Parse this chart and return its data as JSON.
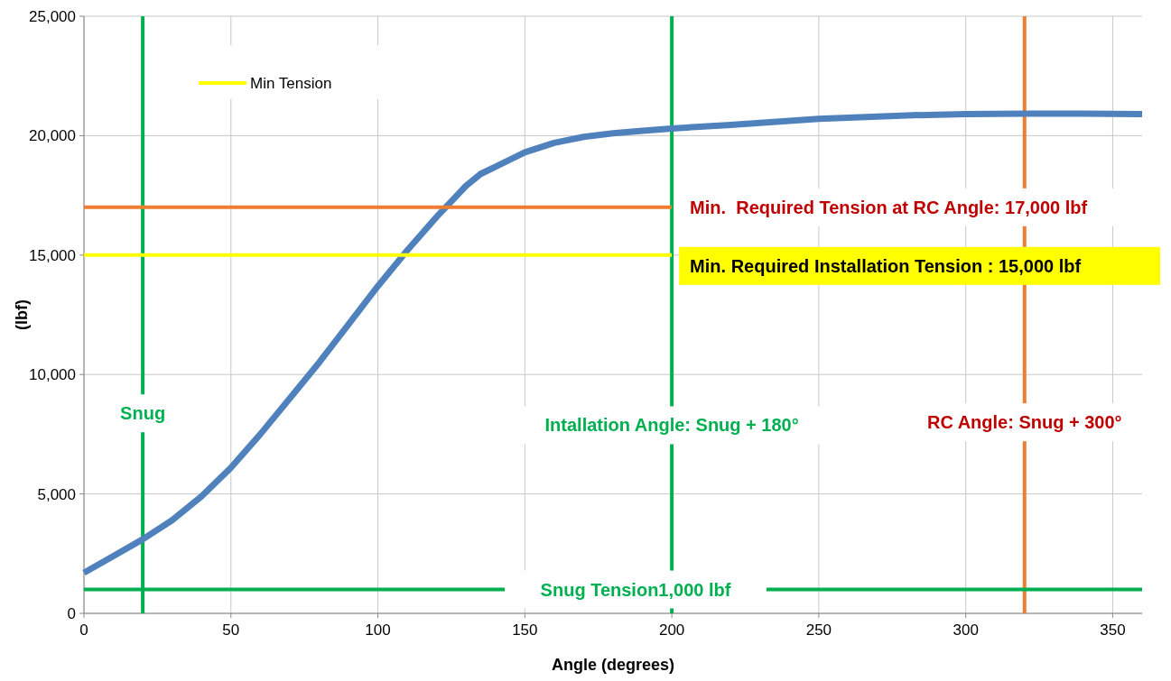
{
  "chart_data": {
    "type": "line",
    "xlabel": "Angle (degrees)",
    "ylabel": "(lbf)",
    "xlim": [
      0,
      360
    ],
    "xticks": [
      0,
      50,
      100,
      150,
      200,
      250,
      300,
      350
    ],
    "ylim": [
      0,
      25000
    ],
    "yticks": [
      {
        "value": 0,
        "label": "0"
      },
      {
        "value": 5000,
        "label": "5,000"
      },
      {
        "value": 10000,
        "label": "10,000"
      },
      {
        "value": 15000,
        "label": "15,000"
      },
      {
        "value": 20000,
        "label": "20,000"
      },
      {
        "value": 25000,
        "label": "25,000"
      }
    ],
    "grid": true,
    "legend": "top left",
    "series": [
      {
        "color": "#4f81bd",
        "x": [
          0,
          10,
          20,
          30,
          40,
          50,
          60,
          70,
          80,
          90,
          100,
          110,
          120,
          130,
          135,
          140,
          150,
          160,
          170,
          180,
          190,
          200,
          220,
          250,
          280,
          300,
          320,
          340,
          360
        ],
        "values": [
          1700,
          2400,
          3100,
          3900,
          4900,
          6100,
          7500,
          9000,
          10500,
          12100,
          13700,
          15200,
          16600,
          17900,
          18400,
          18700,
          19300,
          19700,
          19950,
          20100,
          20200,
          20300,
          20450,
          20700,
          20850,
          20900,
          20920,
          20920,
          20900
        ]
      },
      {
        "name": "Min Tension",
        "color": "#ffff00",
        "x": [
          0,
          200
        ],
        "values": [
          15000,
          15000
        ]
      },
      {
        "color": "#ed7d31",
        "x": [
          0,
          200
        ],
        "values": [
          17000,
          17000
        ]
      }
    ],
    "ref_lines": [
      {
        "axis": "x",
        "value": 20,
        "label": "Snug",
        "color": "#00b050"
      },
      {
        "axis": "x",
        "value": 200,
        "label": "Intallation Angle: Snug + 180°",
        "color": "#00b050"
      },
      {
        "axis": "x",
        "value": 320,
        "label": "RC Angle: Snug + 300°",
        "color": "#ed7d31"
      },
      {
        "axis": "y",
        "value": 1000,
        "label": "Snug Tension1,000 lbf",
        "color": "#00b050"
      }
    ],
    "annotations": [
      {
        "text": "Min.  Required Tension at RC Angle: 17,000 lbf",
        "x": 200,
        "y": 17000
      },
      {
        "text": "Min. Required Installation Tension : 15,000 lbf",
        "x": 200,
        "y": 15000
      }
    ]
  }
}
